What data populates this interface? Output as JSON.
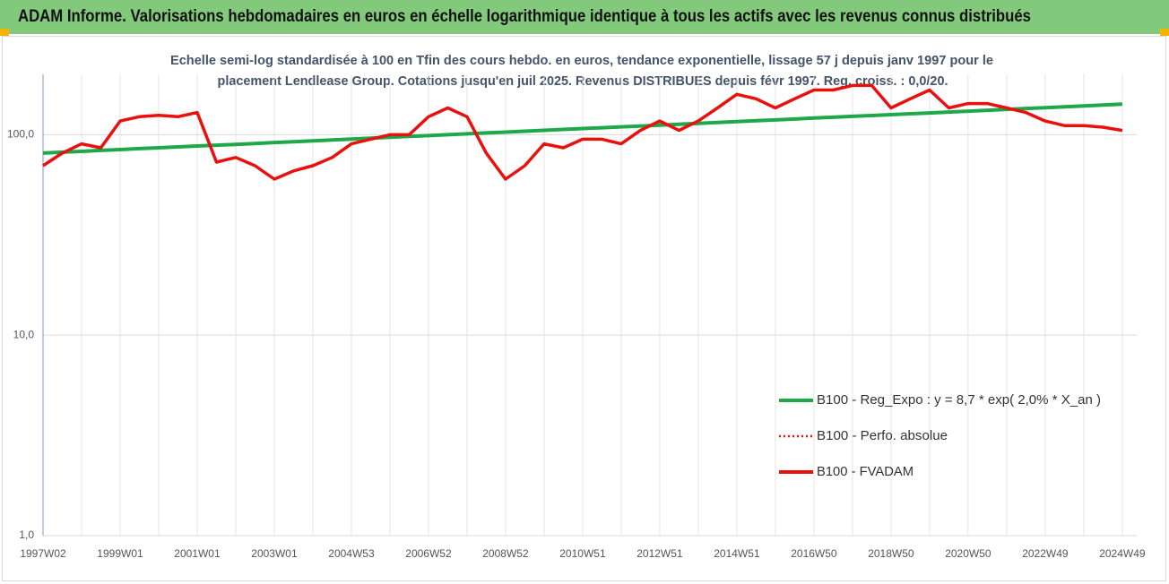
{
  "chart_data": {
    "type": "line",
    "title": "ADAM Informe. Valorisations hebdomadaires en euros en échelle logarithmique identique à tous les actifs avec les revenus connus distribués",
    "subtitle": [
      "Echelle semi-log standardisée à 100 en Tfin des cours hebdo. en euros, tendance exponentielle, lissage 57 j depuis janv 1997 pour le",
      "placement Lendlease Group. Cotations jusqu'en juil 2025.  Revenus DISTRIBUES  depuis févr 1997. Reg. croiss. : 0,0/20."
    ],
    "categories": [
      "1997W02",
      null,
      null,
      null,
      "1999W01",
      null,
      null,
      null,
      "2001W01",
      null,
      null,
      null,
      "2003W01",
      null,
      null,
      null,
      "2004W53",
      null,
      null,
      null,
      "2006W52",
      null,
      null,
      null,
      "2008W52",
      null,
      null,
      null,
      "2010W51",
      null,
      null,
      null,
      "2012W51",
      null,
      null,
      null,
      "2014W51",
      null,
      null,
      null,
      "2016W50",
      null,
      null,
      null,
      "2018W50",
      null,
      null,
      null,
      "2020W50",
      null,
      null,
      null,
      "2022W49",
      null,
      null,
      null,
      "2024W49"
    ],
    "ylog": true,
    "ylim": [
      1,
      200
    ],
    "yticks": [
      {
        "value": 1,
        "label": "1,0"
      },
      {
        "value": 10,
        "label": "10,0"
      },
      {
        "value": 100,
        "label": "100,0"
      }
    ],
    "grid": true,
    "legend": "right",
    "series": [
      {
        "name": "B100 - Reg_Expo : y = 8,7 * exp( 2,0% *  X_an )",
        "color": "#1fa84a",
        "style": "solid",
        "values": [
          81.0,
          81.8,
          82.6,
          83.5,
          84.3,
          85.2,
          86.0,
          86.9,
          87.8,
          88.6,
          89.5,
          90.4,
          91.4,
          92.3,
          93.2,
          94.1,
          95.1,
          96.0,
          97.0,
          98.0,
          99.0,
          100.0,
          101.0,
          102.0,
          103.0,
          104.1,
          105.1,
          106.2,
          107.3,
          108.3,
          109.4,
          110.5,
          111.6,
          112.8,
          113.9,
          115.0,
          116.2,
          117.4,
          118.5,
          119.7,
          121.0,
          122.2,
          123.4,
          124.6,
          125.9,
          127.2,
          128.4,
          129.7,
          131.1,
          132.4,
          133.7,
          135.1,
          136.4,
          137.8,
          139.2,
          140.6,
          142.0
        ]
      },
      {
        "name": "B100 - Perfo. absolue",
        "color": "#e8110e",
        "style": "dotted",
        "values": [
          70,
          81,
          90,
          86,
          117,
          123,
          125,
          123,
          129,
          73,
          77,
          70,
          60,
          66,
          70,
          77,
          90,
          95,
          100,
          100,
          123,
          136,
          123,
          81,
          60,
          70,
          90,
          86,
          95,
          95,
          90,
          105,
          117,
          105,
          117,
          136,
          159,
          151,
          136,
          151,
          167,
          167,
          176,
          176,
          136,
          151,
          167,
          136,
          143,
          143,
          136,
          129,
          117,
          111,
          111,
          109,
          105
        ]
      },
      {
        "name": "B100 - FVADAM",
        "color": "#e8110e",
        "style": "solid",
        "values": [
          70,
          81,
          90,
          86,
          117,
          123,
          125,
          123,
          129,
          73,
          77,
          70,
          60,
          66,
          70,
          77,
          90,
          95,
          100,
          100,
          123,
          136,
          123,
          81,
          60,
          70,
          90,
          86,
          95,
          95,
          90,
          105,
          117,
          105,
          117,
          136,
          159,
          151,
          136,
          151,
          167,
          167,
          176,
          176,
          136,
          151,
          167,
          136,
          143,
          143,
          136,
          129,
          117,
          111,
          111,
          109,
          105
        ]
      }
    ]
  }
}
